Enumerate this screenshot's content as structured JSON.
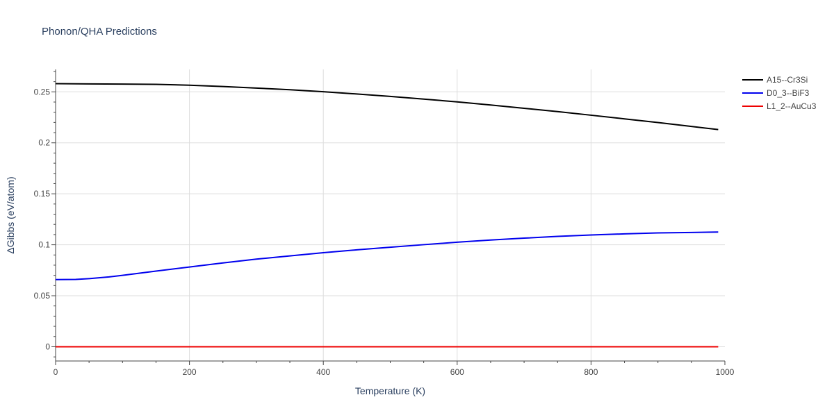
{
  "chart_data": {
    "type": "line",
    "title": "Phonon/QHA Predictions",
    "xlabel": "Temperature (K)",
    "ylabel": "ΔGibbs (eV/atom)",
    "xlim": [
      0,
      1000
    ],
    "ylim": [
      -0.014,
      0.272
    ],
    "x_ticks": [
      0,
      200,
      400,
      600,
      800,
      1000
    ],
    "x_tick_labels": [
      "0",
      "200",
      "400",
      "600",
      "800",
      "1000"
    ],
    "y_ticks": [
      0,
      0.05,
      0.1,
      0.15,
      0.2,
      0.25
    ],
    "y_tick_labels": [
      "0",
      "0.05",
      "0.1",
      "0.15",
      "0.2",
      "0.25"
    ],
    "grid": true,
    "legend_position": "top-right",
    "series": [
      {
        "name": "A15--Cr3Si",
        "color": "#000000",
        "x": [
          0,
          50,
          100,
          150,
          200,
          250,
          300,
          350,
          400,
          450,
          500,
          550,
          600,
          650,
          700,
          750,
          800,
          850,
          900,
          950,
          990
        ],
        "y": [
          0.258,
          0.2578,
          0.2576,
          0.2574,
          0.2565,
          0.2552,
          0.2537,
          0.2521,
          0.2501,
          0.2479,
          0.2455,
          0.2429,
          0.2402,
          0.2371,
          0.2339,
          0.2306,
          0.2271,
          0.2235,
          0.2199,
          0.2161,
          0.213
        ]
      },
      {
        "name": "D0_3--BiF3",
        "color": "#0000ee",
        "x": [
          0,
          30,
          50,
          80,
          100,
          150,
          200,
          250,
          300,
          350,
          400,
          450,
          500,
          550,
          600,
          650,
          700,
          750,
          800,
          850,
          900,
          950,
          990
        ],
        "y": [
          0.0658,
          0.066,
          0.0668,
          0.0685,
          0.07,
          0.0742,
          0.0782,
          0.0822,
          0.0859,
          0.0891,
          0.0922,
          0.095,
          0.0976,
          0.1001,
          0.1025,
          0.1047,
          0.1065,
          0.1082,
          0.1096,
          0.1107,
          0.1116,
          0.1121,
          0.1125
        ]
      },
      {
        "name": "L1_2--AuCu3",
        "color": "#ee0000",
        "x": [
          0,
          990
        ],
        "y": [
          0,
          0
        ]
      }
    ]
  },
  "colors": {
    "grid": "#dddddd",
    "axis": "#444444",
    "text": "#444444",
    "title": "#2a3f5f"
  }
}
